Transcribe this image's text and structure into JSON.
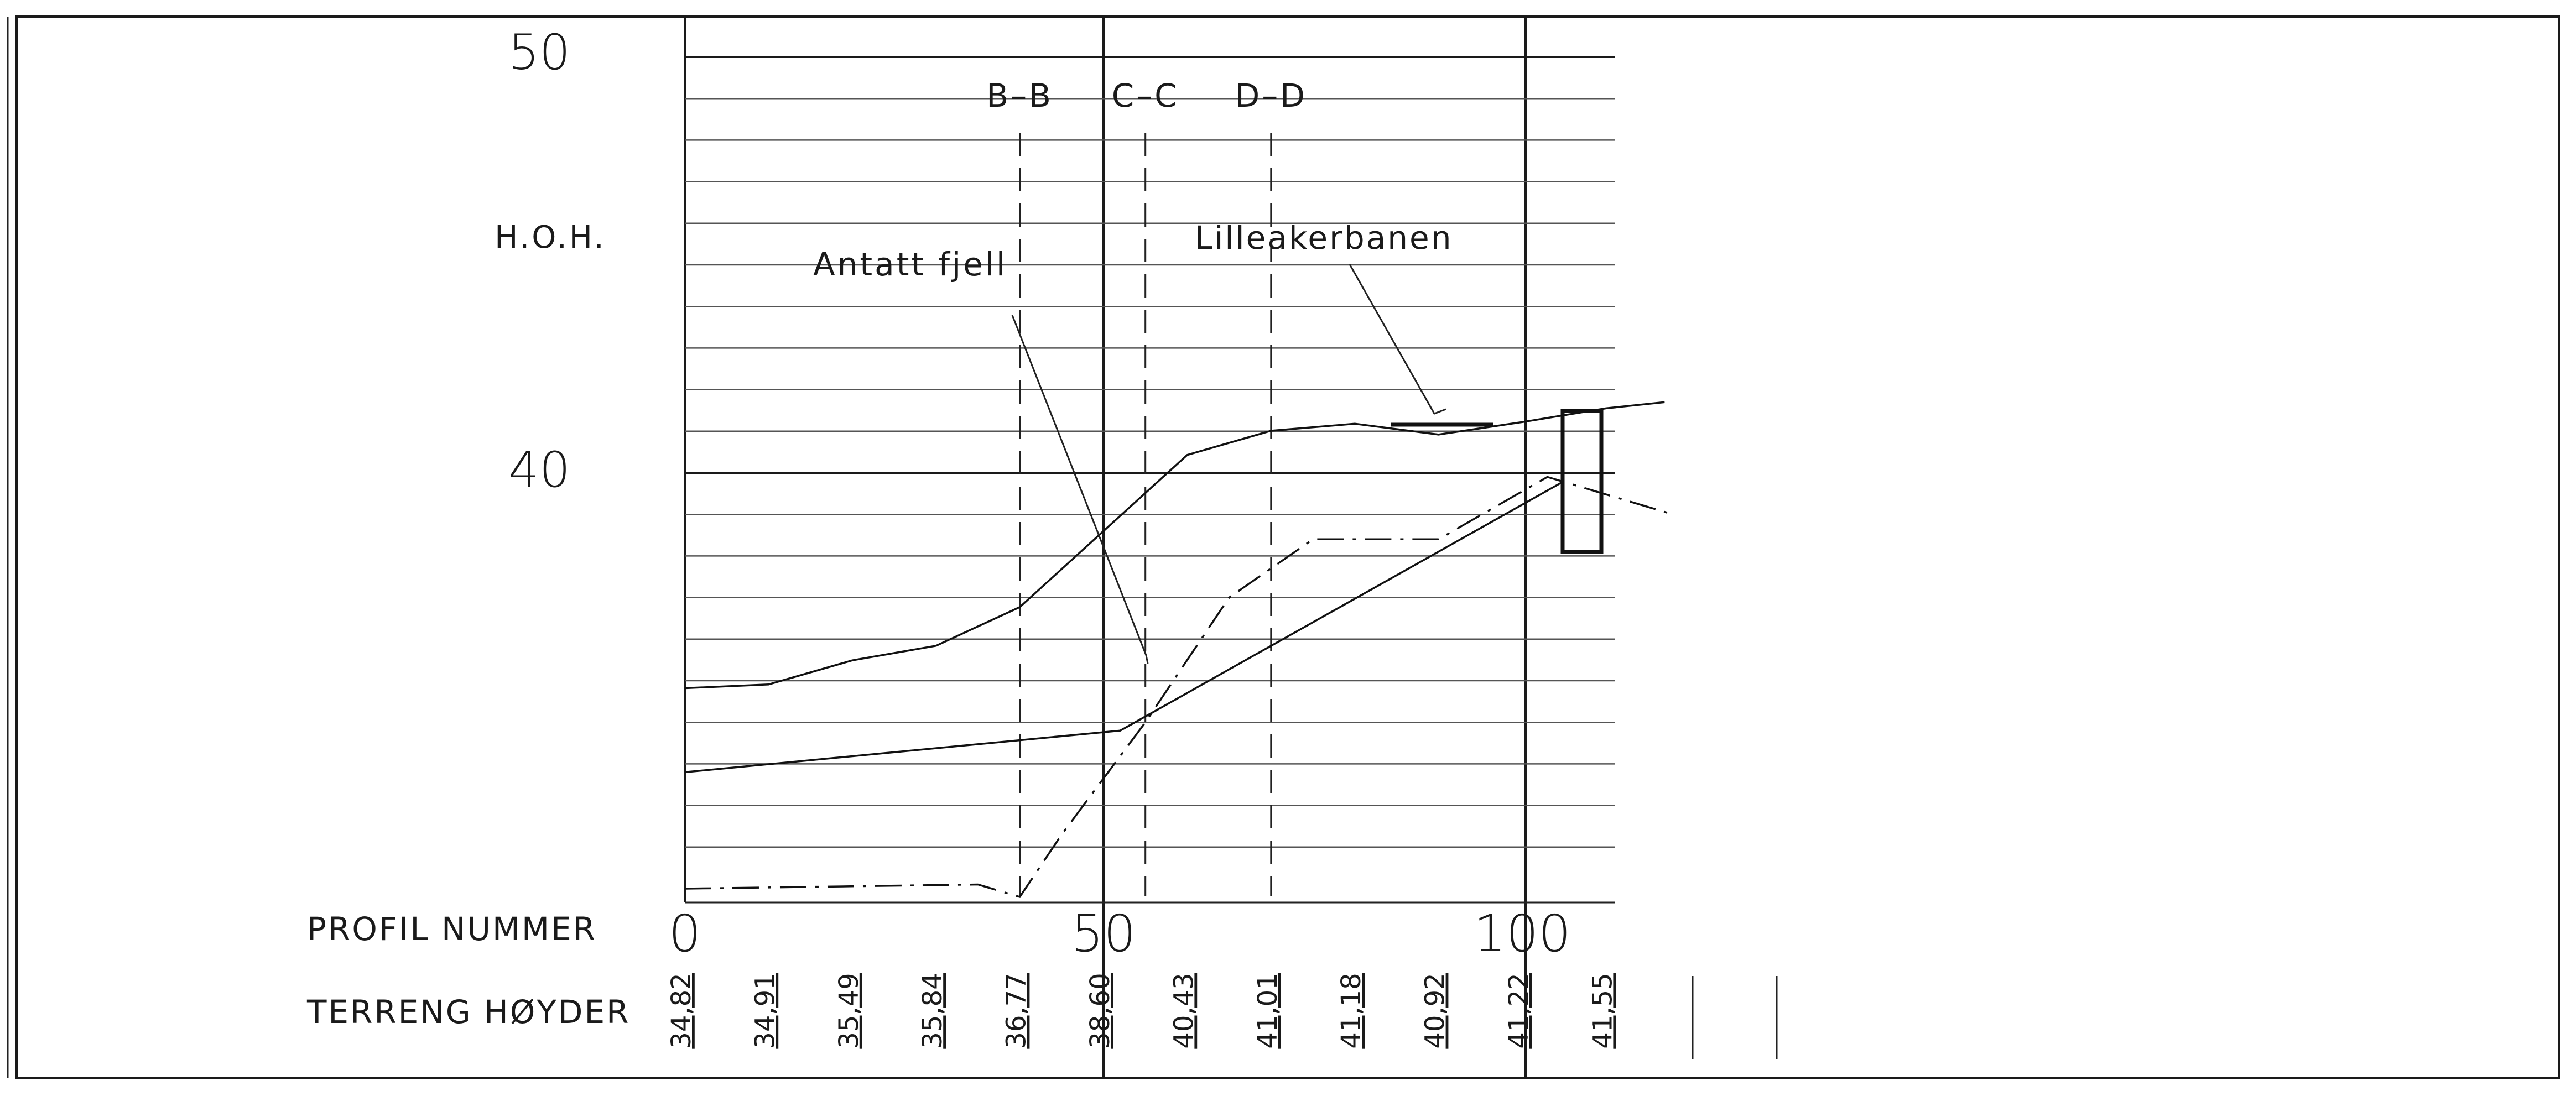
{
  "y_axis": {
    "label": "H.O.H.",
    "ticks": [
      {
        "value": 50,
        "label": "50"
      },
      {
        "value": 40,
        "label": "40"
      }
    ],
    "range": [
      29.5,
      50
    ]
  },
  "x_axis": {
    "row_label": "PROFIL NUMMER",
    "ticks": [
      {
        "value": 0,
        "label": "0"
      },
      {
        "value": 50,
        "label": "50"
      },
      {
        "value": 100,
        "label": "100"
      }
    ],
    "range": [
      0,
      110
    ]
  },
  "terrain_row": {
    "label": "TERRENG HØYDER",
    "values": [
      "34,82",
      "34,91",
      "35,49",
      "35,84",
      "36,77",
      "38,60",
      "40,43",
      "41,01",
      "41,18",
      "40,92",
      "41,22",
      "41,55"
    ]
  },
  "sections": [
    "B–B",
    "C–C",
    "D–D"
  ],
  "annotations": {
    "rock": "Antatt fjell",
    "rail": "Lilleakerbanen"
  },
  "chart_data": {
    "type": "line",
    "xlabel": "PROFIL NUMMER",
    "ylabel": "H.O.H.",
    "xlim": [
      0,
      110
    ],
    "ylim": [
      29.5,
      50
    ],
    "grid": true,
    "series": [
      {
        "style": "solid",
        "x": [
          0,
          10,
          20,
          30,
          40,
          50,
          60,
          70,
          80,
          90,
          100,
          110,
          117
        ],
        "y": [
          34.82,
          34.91,
          35.49,
          35.84,
          36.77,
          38.6,
          40.43,
          41.01,
          41.18,
          40.92,
          41.22,
          41.55,
          41.7
        ]
      },
      {
        "style": "solid",
        "x": [
          0,
          52,
          105
        ],
        "y": [
          32.8,
          33.8,
          39.8
        ]
      },
      {
        "style": "dash-dot",
        "x": [
          0,
          35,
          40,
          45,
          55,
          65,
          75,
          90,
          103,
          118
        ],
        "y": [
          30.0,
          30.1,
          29.8,
          31.3,
          34.0,
          37.0,
          38.4,
          38.4,
          39.9,
          39.0
        ]
      }
    ],
    "section_lines": [
      {
        "name": "B–B",
        "x": 40
      },
      {
        "name": "C–C",
        "x": 55
      },
      {
        "name": "D–D",
        "x": 70
      }
    ]
  }
}
